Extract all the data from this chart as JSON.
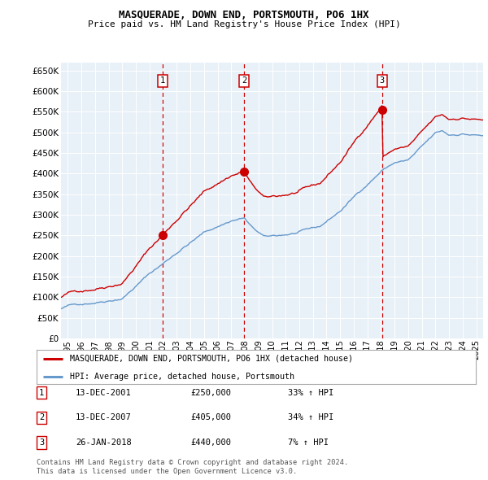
{
  "title": "MASQUERADE, DOWN END, PORTSMOUTH, PO6 1HX",
  "subtitle": "Price paid vs. HM Land Registry's House Price Index (HPI)",
  "legend_line1": "MASQUERADE, DOWN END, PORTSMOUTH, PO6 1HX (detached house)",
  "legend_line2": "HPI: Average price, detached house, Portsmouth",
  "transactions": [
    {
      "num": 1,
      "date": "13-DEC-2001",
      "price": 250000,
      "pct": "33%",
      "dir": "↑",
      "ref": "HPI",
      "year": 2001.95
    },
    {
      "num": 2,
      "date": "13-DEC-2007",
      "price": 405000,
      "pct": "34%",
      "dir": "↑",
      "ref": "HPI",
      "year": 2007.95
    },
    {
      "num": 3,
      "date": "26-JAN-2018",
      "price": 440000,
      "pct": "7%",
      "dir": "↑",
      "ref": "HPI",
      "year": 2018.07
    }
  ],
  "footnote1": "Contains HM Land Registry data © Crown copyright and database right 2024.",
  "footnote2": "This data is licensed under the Open Government Licence v3.0.",
  "red_color": "#cc0000",
  "blue_color": "#6699cc",
  "plot_bg": "#e8f0f8",
  "ylim": [
    0,
    670000
  ],
  "yticks": [
    0,
    50000,
    100000,
    150000,
    200000,
    250000,
    300000,
    350000,
    400000,
    450000,
    500000,
    550000,
    600000,
    650000
  ],
  "xmin": 1994.5,
  "xmax": 2025.5,
  "xtick_years": [
    1995,
    1996,
    1997,
    1998,
    1999,
    2000,
    2001,
    2002,
    2003,
    2004,
    2005,
    2006,
    2007,
    2008,
    2009,
    2010,
    2011,
    2012,
    2013,
    2014,
    2015,
    2016,
    2017,
    2018,
    2019,
    2020,
    2021,
    2022,
    2023,
    2024,
    2025
  ]
}
